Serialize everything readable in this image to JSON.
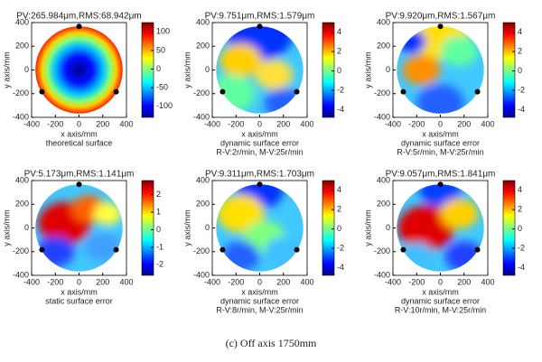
{
  "caption": "(c)    Off axis 1750mm",
  "panels": [
    {
      "title": "PV:265.984μm,RMS:68.942μm",
      "xlabel": "x axis/mm",
      "ylabel": "y axis/mm",
      "caption": [
        "theoretical surface"
      ],
      "xlim": [
        -400,
        400
      ],
      "ylim": [
        -400,
        400
      ],
      "xticks": [
        -400,
        -200,
        0,
        200,
        400
      ],
      "yticks": [
        -400,
        -200,
        0,
        200,
        400
      ],
      "clim": [
        -130,
        125
      ],
      "cticks": [
        -100,
        -50,
        0,
        50,
        100
      ]
    },
    {
      "title": "PV:9.751μm,RMS:1.579μm",
      "xlabel": "x axis/mm",
      "ylabel": "y axis/mm",
      "caption": [
        "dynamic surface error",
        "R-V:2r/min, M-V:25r/min"
      ],
      "xlim": [
        -400,
        400
      ],
      "ylim": [
        -400,
        400
      ],
      "xticks": [
        -400,
        -200,
        0,
        200,
        400
      ],
      "yticks": [
        -400,
        -200,
        0,
        200,
        400
      ],
      "clim": [
        -4.8,
        5
      ],
      "cticks": [
        -4,
        -2,
        0,
        2,
        4
      ]
    },
    {
      "title": "PV:9.920μm,RMS:1.567μm",
      "xlabel": "x axis/mm",
      "ylabel": "y axis/mm",
      "caption": [
        "dynamic surface error",
        "R-V:5r/min, M-V:25r/min"
      ],
      "xlim": [
        -400,
        400
      ],
      "ylim": [
        -400,
        400
      ],
      "xticks": [
        -400,
        -200,
        0,
        200,
        400
      ],
      "yticks": [
        -400,
        -200,
        0,
        200,
        400
      ],
      "clim": [
        -4.8,
        5
      ],
      "cticks": [
        -4,
        -2,
        0,
        2,
        4
      ]
    },
    {
      "title": "PV:5.173μm,RMS:1.141μm",
      "xlabel": "x axis/mm",
      "ylabel": "y axis/mm",
      "caption": [
        "static surface error"
      ],
      "xlim": [
        -400,
        400
      ],
      "ylim": [
        -400,
        400
      ],
      "xticks": [
        -400,
        -200,
        0,
        200,
        400
      ],
      "yticks": [
        -400,
        -200,
        0,
        200,
        400
      ],
      "clim": [
        -2.6,
        2.8
      ],
      "cticks": [
        -2,
        -1,
        0,
        1,
        2
      ]
    },
    {
      "title": "PV:9.311μm,RMS:1.703μm",
      "xlabel": "x axis/mm",
      "ylabel": "y axis/mm",
      "caption": [
        "dynamic surface error",
        "R-V:8r/min, M-V:25r/min"
      ],
      "xlim": [
        -400,
        400
      ],
      "ylim": [
        -400,
        400
      ],
      "xticks": [
        -400,
        -200,
        0,
        200,
        400
      ],
      "yticks": [
        -400,
        -200,
        0,
        200,
        400
      ],
      "clim": [
        -4.8,
        5
      ],
      "cticks": [
        -4,
        -2,
        0,
        2,
        4
      ]
    },
    {
      "title": "PV:9.057μm,RMS:1.841μm",
      "xlabel": "x axis/mm",
      "ylabel": "y axis/mm",
      "caption": [
        "dynamic surface error",
        "R-V:10r/min, M-V:25r/min"
      ],
      "xlim": [
        -400,
        400
      ],
      "ylim": [
        -400,
        400
      ],
      "xticks": [
        -400,
        -200,
        0,
        200,
        400
      ],
      "yticks": [
        -400,
        -200,
        0,
        200,
        400
      ],
      "clim": [
        -4.8,
        5
      ],
      "cticks": [
        -4,
        -2,
        0,
        2,
        4
      ]
    }
  ]
}
